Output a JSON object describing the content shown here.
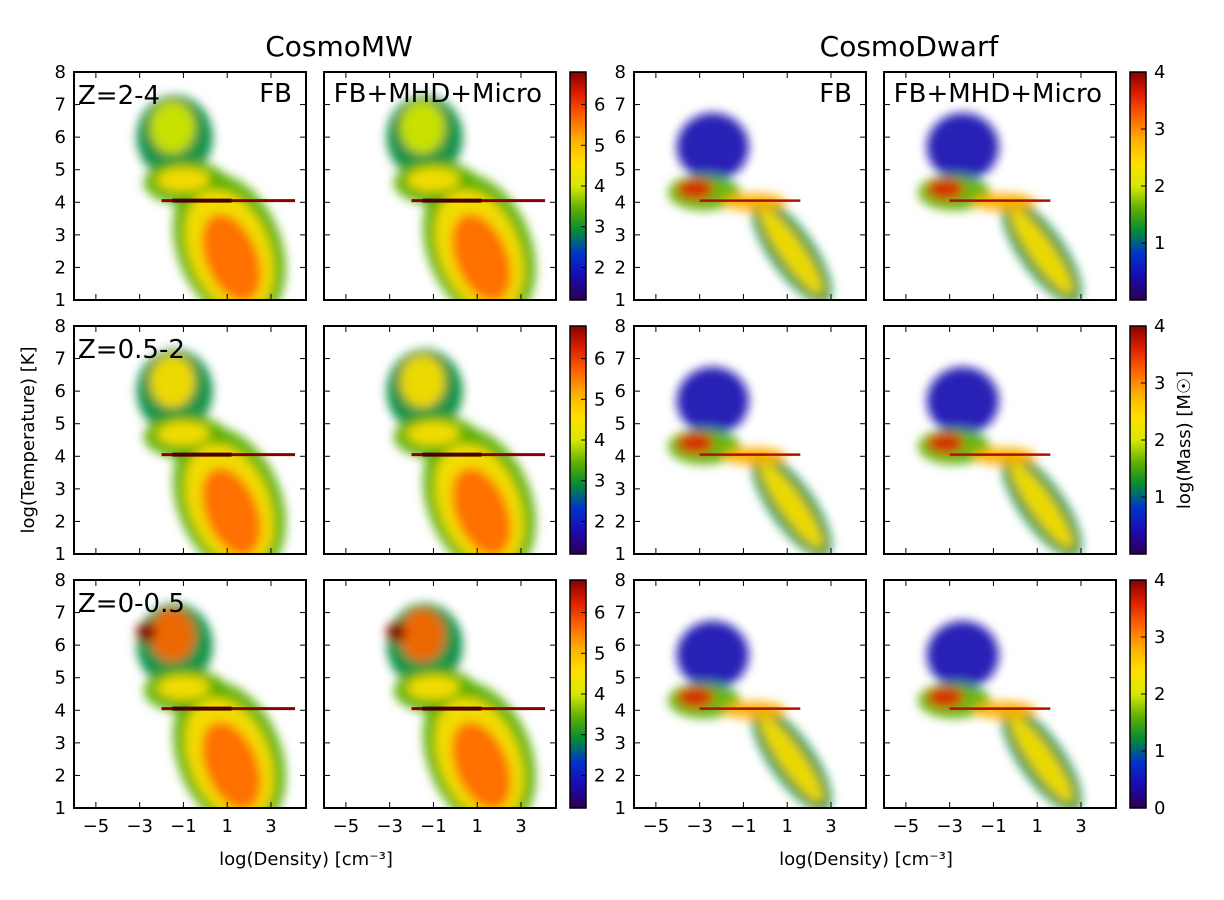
{
  "chart_data": {
    "type": "heatmap",
    "column_titles": [
      "CosmoMW",
      "CosmoDwarf"
    ],
    "row_labels": [
      "Z=2-4",
      "Z=0.5-2",
      "Z=0-0.5"
    ],
    "panel_labels": [
      "FB",
      "FB+MHD+Micro",
      "FB",
      "FB+MHD+Micro"
    ],
    "xlabel": "log(Density) [cm⁻³]",
    "ylabel": "log(Temperature) [K]",
    "colorbar_label": "log(Mass) [M☉]",
    "xlim": [
      -6.0,
      4.6
    ],
    "ylim": [
      1,
      8
    ],
    "xticks": [
      "−5",
      "−3",
      "−1",
      "1",
      "3"
    ],
    "xtick_values": [
      -5,
      -3,
      -1,
      1,
      3
    ],
    "yticks": [
      "1",
      "2",
      "3",
      "4",
      "5",
      "6",
      "7",
      "8"
    ],
    "ytick_values": [
      1,
      2,
      3,
      4,
      5,
      6,
      7,
      8
    ],
    "colorbar_mw": {
      "range": [
        1.2,
        6.8
      ],
      "ticks": [
        "2",
        "3",
        "4",
        "5",
        "6"
      ],
      "tick_values": [
        2,
        3,
        4,
        5,
        6
      ]
    },
    "colorbar_dwarf": {
      "range": [
        0,
        4
      ],
      "ticks": [
        "1",
        "2",
        "3",
        "4"
      ],
      "tick_values": [
        1,
        2,
        3,
        4
      ],
      "ticks_bottom_row": [
        "0",
        "1",
        "2",
        "3",
        "4"
      ],
      "tick_values_bottom_row": [
        0,
        1,
        2,
        3,
        4
      ]
    },
    "colormap": [
      "#2d0052",
      "#1a0ab0",
      "#0033cc",
      "#008a3a",
      "#5cb000",
      "#d8e800",
      "#ffe000",
      "#ffb000",
      "#ff6600",
      "#e02000",
      "#8a0000"
    ],
    "features": {
      "MW": [
        {
          "kind": "cold_dense_blob",
          "x": 1.2,
          "y": 2.3,
          "level": 0.82
        },
        {
          "kind": "hot_halo",
          "x": -1.6,
          "y": 6.3,
          "level": 0.55
        },
        {
          "kind": "warm_phase",
          "x": -1.0,
          "y": 4.7,
          "level": 0.6
        },
        {
          "kind": "equilibrium_ridge",
          "x_from": -2.0,
          "x_to": 4.1,
          "y": 4.05,
          "level": 1.0
        }
      ],
      "Dwarf": [
        {
          "kind": "ionized_knee",
          "x": -3.2,
          "y": 4.4,
          "level": 0.85
        },
        {
          "kind": "diagonal_cooling_branch",
          "x_from": -0.3,
          "y_from": 3.5,
          "x_to": 2.8,
          "y_to": 1.2,
          "level": 0.65
        },
        {
          "kind": "diffuse_hot_cloud",
          "x": -2.5,
          "y": 5.6,
          "level": 0.25
        },
        {
          "kind": "equilibrium_ridge",
          "x_from": -3.0,
          "x_to": 1.6,
          "y": 4.05,
          "level": 0.95
        }
      ]
    }
  }
}
